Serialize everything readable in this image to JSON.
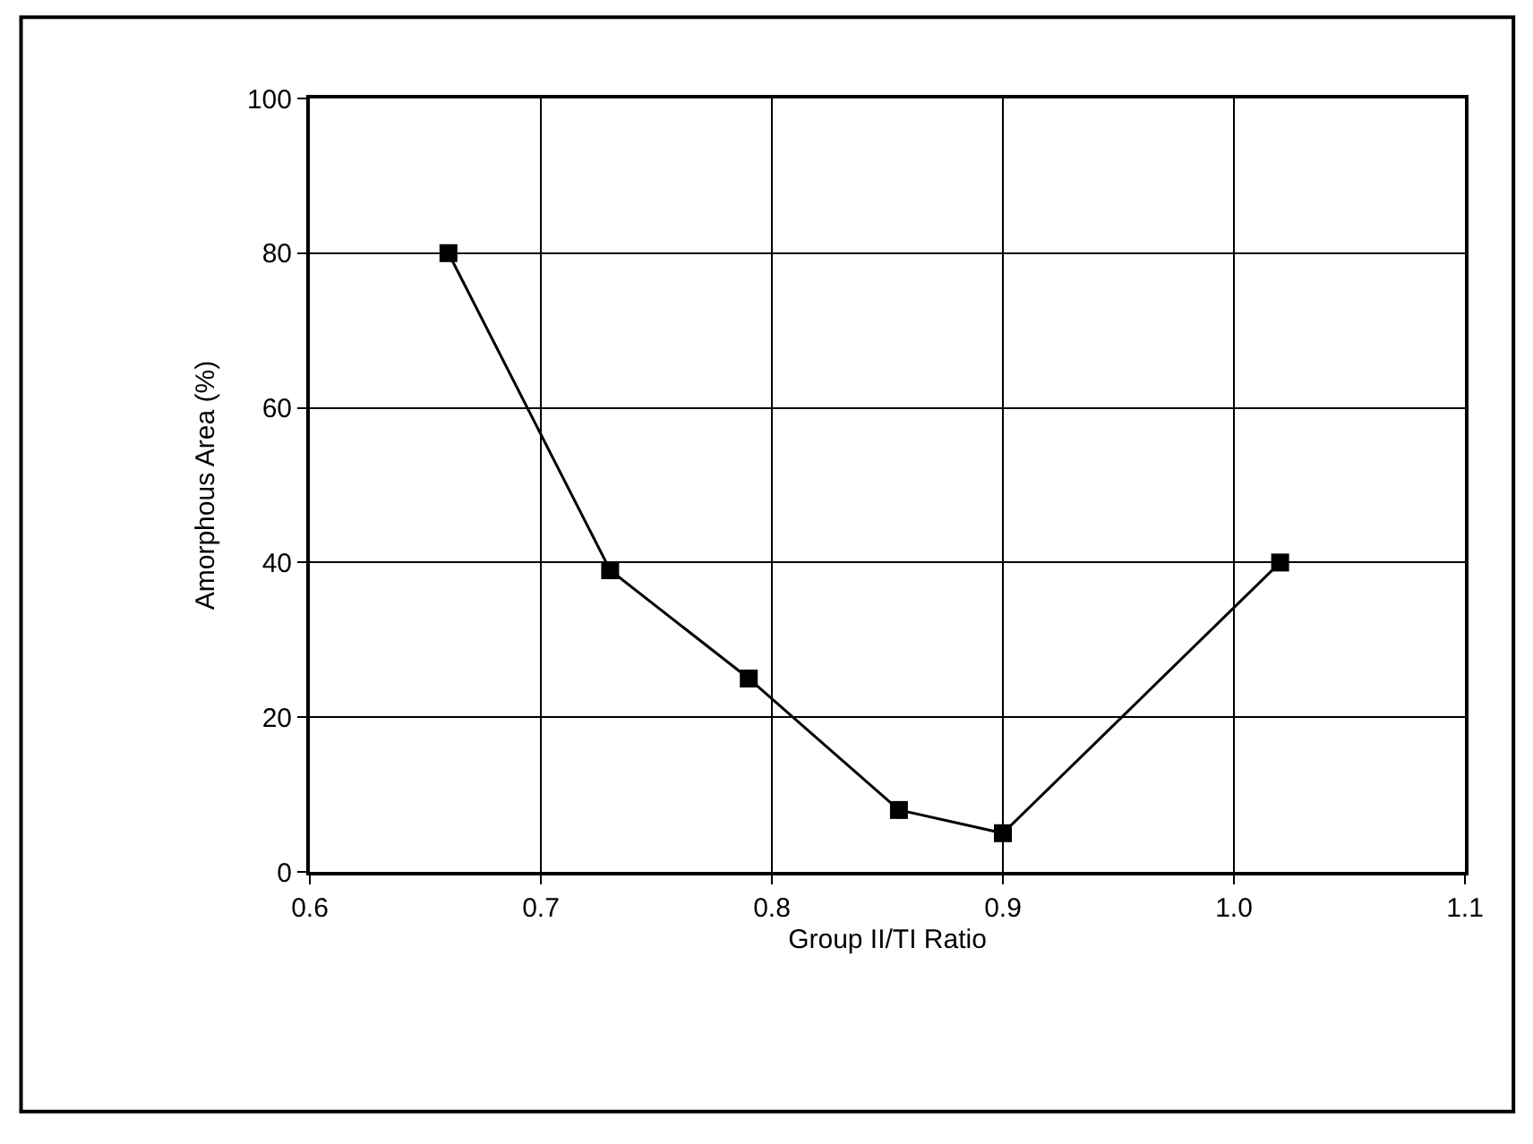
{
  "chart_data": {
    "type": "line",
    "xlabel": "Group II/TI Ratio",
    "ylabel": "Amorphous Area (%)",
    "x": [
      0.66,
      0.73,
      0.79,
      0.855,
      0.9,
      1.02
    ],
    "series": [
      {
        "color": "#000000",
        "values": [
          80,
          39,
          25,
          8,
          5,
          40
        ]
      }
    ],
    "xlim": [
      0.6,
      1.1
    ],
    "xticks": [
      {
        "value": 0.6,
        "label": "0.6"
      },
      {
        "value": 0.7,
        "label": "0.7"
      },
      {
        "value": 0.8,
        "label": "0.8"
      },
      {
        "value": 0.9,
        "label": "0.9"
      },
      {
        "value": 1.0,
        "label": "1.0"
      },
      {
        "value": 1.1,
        "label": "1.1"
      }
    ],
    "ylim": [
      0,
      100
    ],
    "yticks": [
      0,
      20,
      40,
      60,
      80,
      100
    ],
    "grid": true,
    "marker": "square",
    "line_style": "solid"
  }
}
